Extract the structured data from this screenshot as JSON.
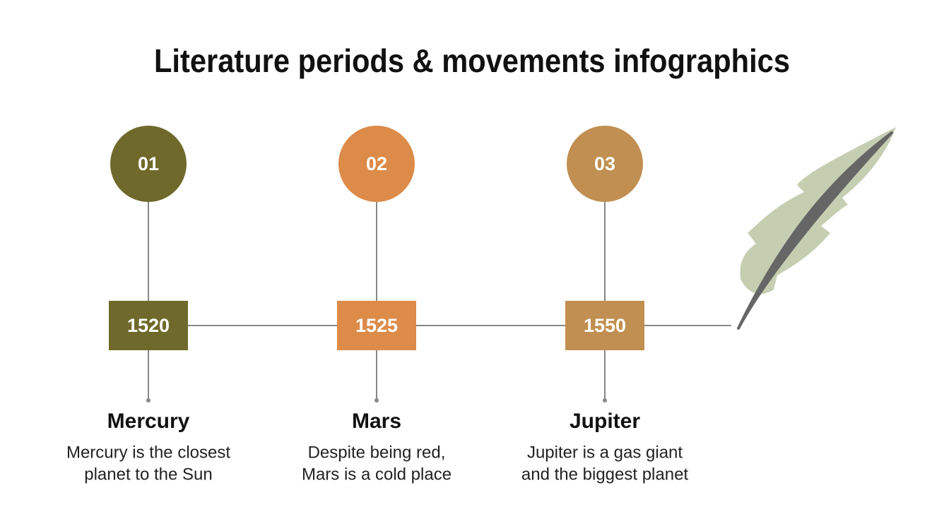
{
  "title": "Literature periods & movements infographics",
  "items": [
    {
      "number": "01",
      "year": "1520",
      "name": "Mercury",
      "description": [
        "Mercury is the closest",
        "planet to the Sun"
      ],
      "color": "#6f6a2b"
    },
    {
      "number": "02",
      "year": "1525",
      "name": "Mars",
      "description": [
        "Despite being red,",
        "Mars is a cold place"
      ],
      "color": "#dc8b49"
    },
    {
      "number": "03",
      "year": "1550",
      "name": "Jupiter",
      "description": [
        "Jupiter is a gas giant",
        "and the biggest planet"
      ],
      "color": "#c08f51"
    }
  ]
}
